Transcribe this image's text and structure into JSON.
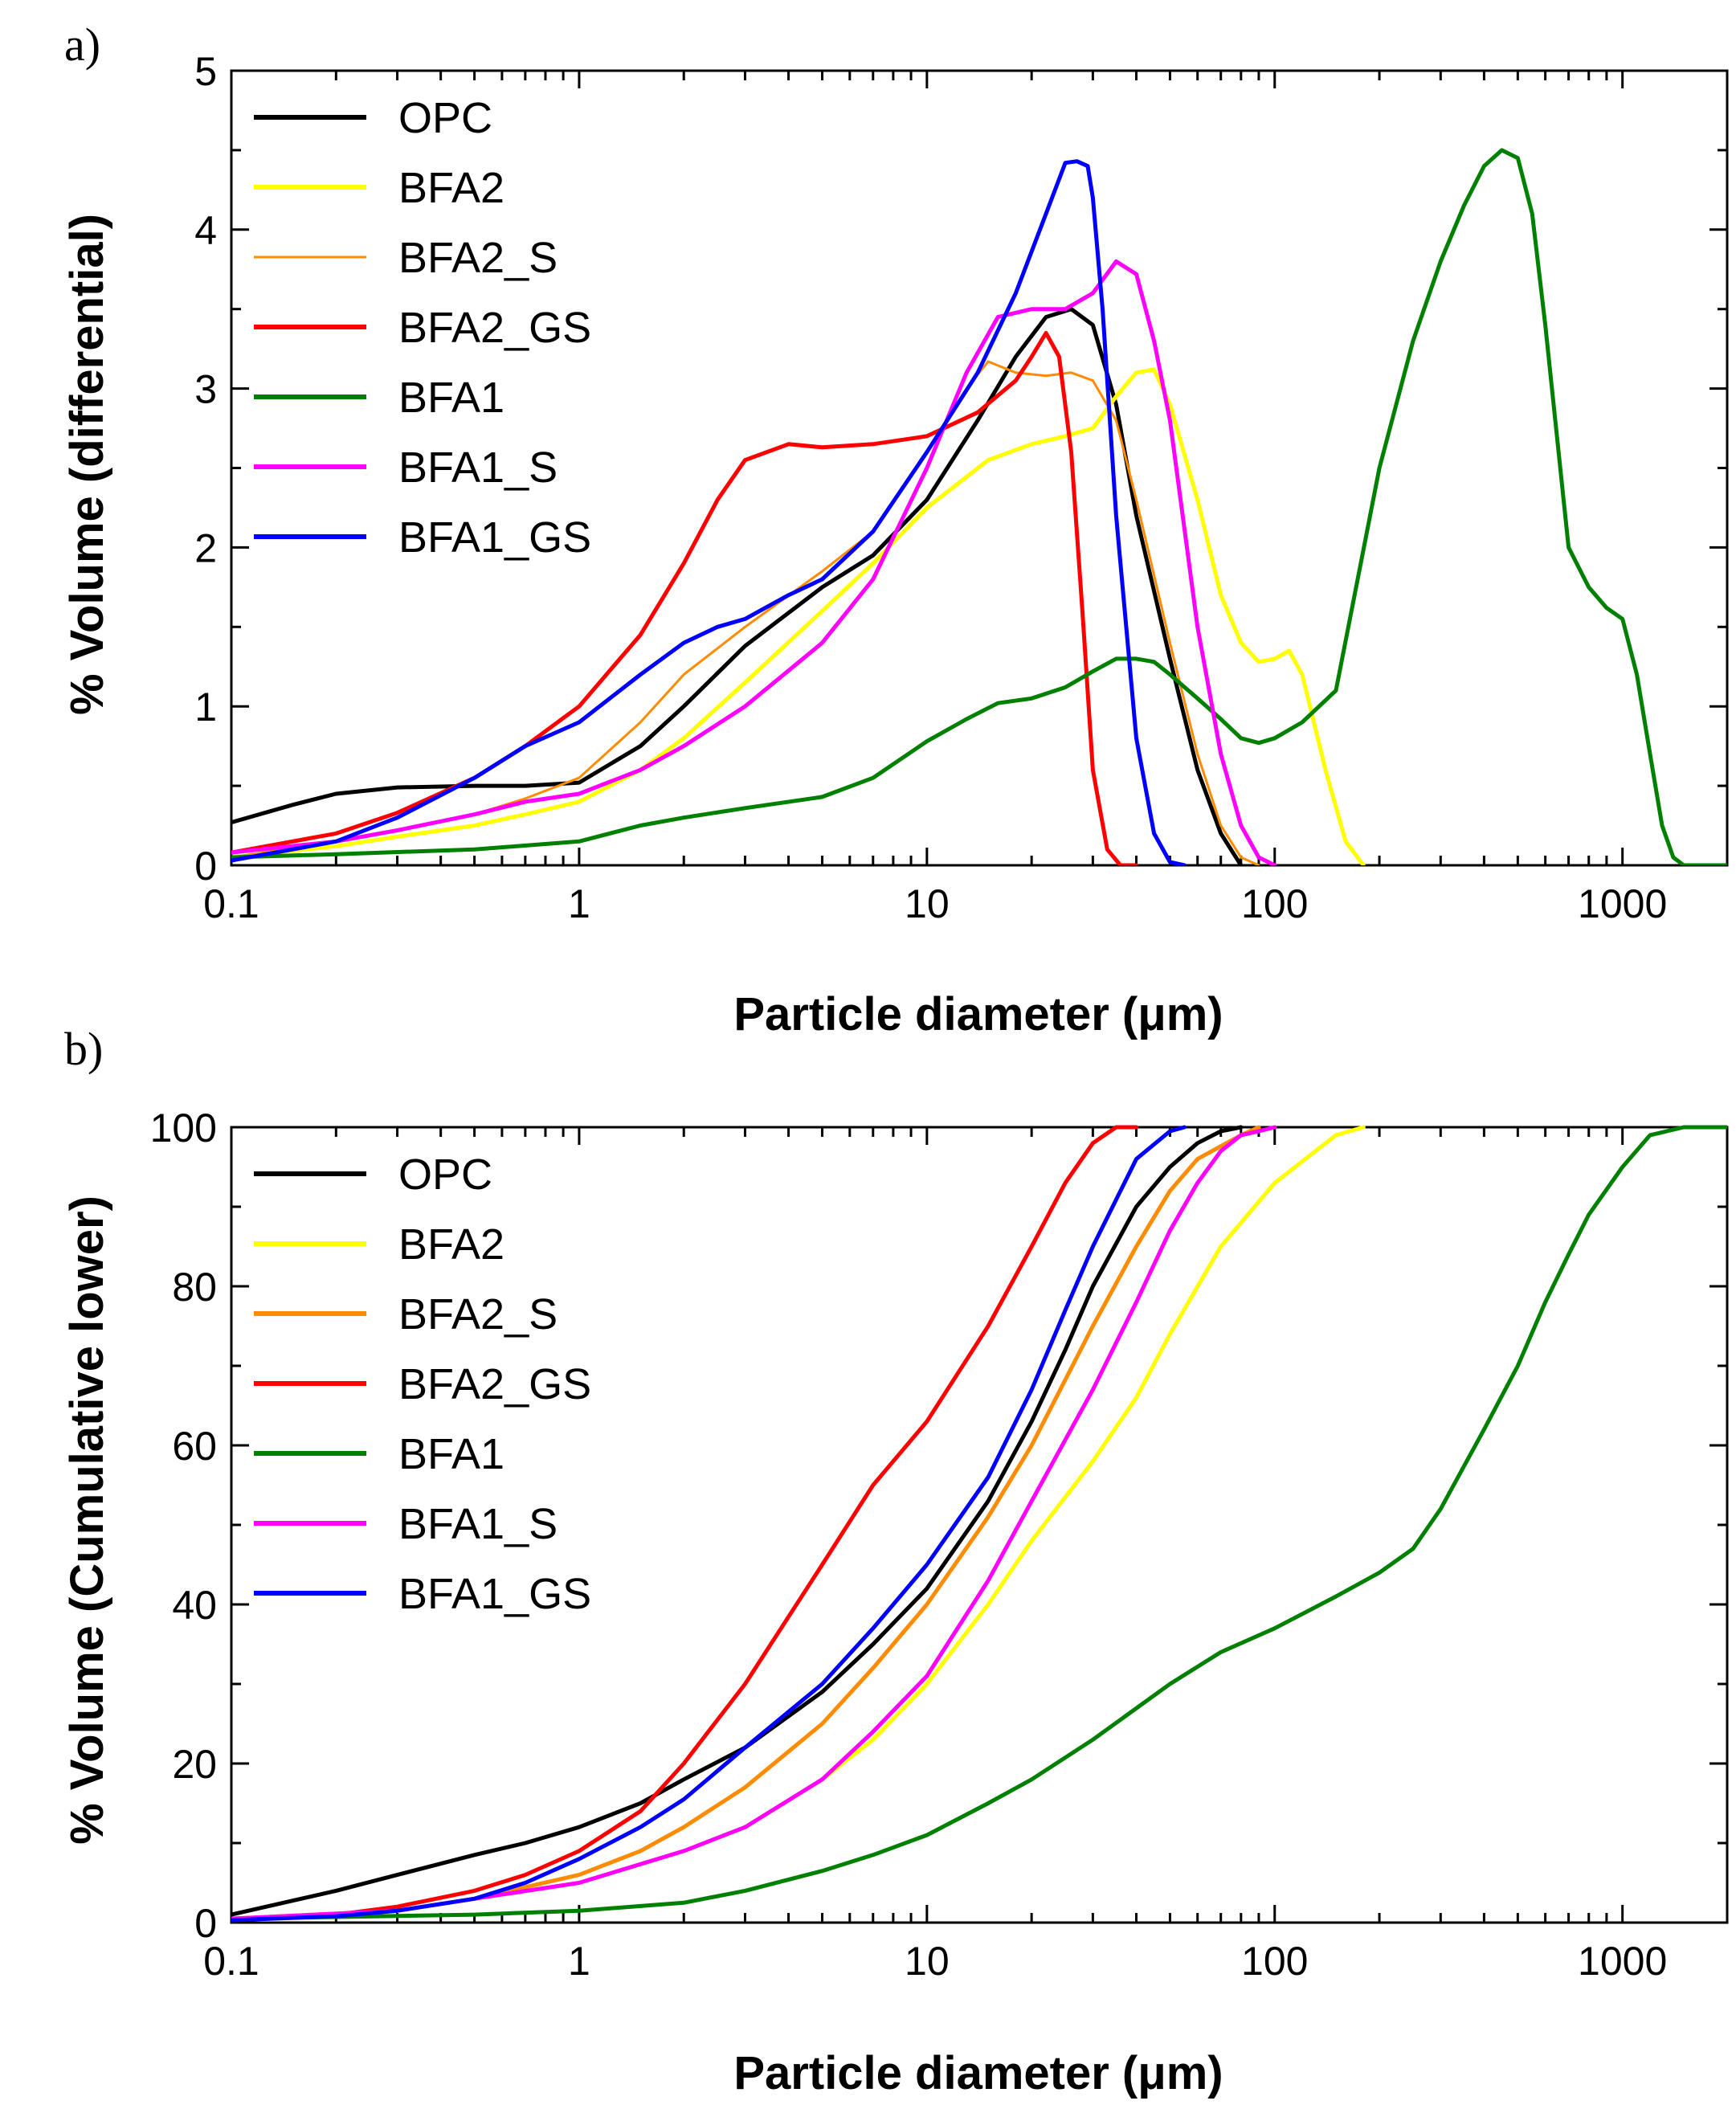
{
  "chart_data": [
    {
      "type": "line",
      "panel_label": "a)",
      "title": "",
      "xlabel": "Particle diameter (μm)",
      "ylabel": "% Volume (differential)",
      "xscale": "log",
      "xlim": [
        0.1,
        2000
      ],
      "ylim": [
        0,
        5
      ],
      "xticks": [
        0.1,
        1,
        10,
        100,
        1000
      ],
      "xtick_labels": [
        "0.1",
        "1",
        "10",
        "100",
        "1000"
      ],
      "yticks": [
        0,
        1,
        2,
        3,
        4,
        5
      ],
      "ytick_labels": [
        "0",
        "1",
        "2",
        "3",
        "4",
        "5"
      ],
      "legend_position": "top-left",
      "series": [
        {
          "name": "OPC",
          "color": "#000000",
          "x": [
            0.1,
            0.15,
            0.2,
            0.3,
            0.5,
            0.7,
            1,
            1.5,
            2,
            3,
            5,
            7,
            10,
            14,
            18,
            22,
            26,
            30,
            35,
            40,
            50,
            60,
            70,
            80
          ],
          "y": [
            0.27,
            0.38,
            0.45,
            0.49,
            0.5,
            0.5,
            0.52,
            0.75,
            1.0,
            1.38,
            1.75,
            1.95,
            2.3,
            2.8,
            3.2,
            3.45,
            3.5,
            3.4,
            2.9,
            2.2,
            1.3,
            0.6,
            0.2,
            0.0
          ]
        },
        {
          "name": "BFA2",
          "color": "#ffff00",
          "x": [
            0.1,
            0.2,
            0.3,
            0.5,
            0.7,
            1,
            1.5,
            2,
            3,
            5,
            7,
            10,
            15,
            20,
            25,
            30,
            35,
            40,
            45,
            50,
            60,
            70,
            80,
            90,
            100,
            110,
            120,
            140,
            160,
            180
          ],
          "y": [
            0.05,
            0.12,
            0.18,
            0.25,
            0.32,
            0.4,
            0.6,
            0.8,
            1.15,
            1.6,
            1.9,
            2.25,
            2.55,
            2.65,
            2.7,
            2.75,
            2.95,
            3.1,
            3.12,
            2.9,
            2.3,
            1.7,
            1.4,
            1.28,
            1.3,
            1.35,
            1.2,
            0.6,
            0.15,
            0.0
          ]
        },
        {
          "name": "BFA2_S",
          "color": "#ff8c00",
          "thin": true,
          "x": [
            0.1,
            0.2,
            0.3,
            0.5,
            0.7,
            1,
            1.5,
            2,
            3,
            5,
            7,
            10,
            13,
            15,
            18,
            22,
            26,
            30,
            35,
            40,
            50,
            60,
            70,
            80,
            90
          ],
          "y": [
            0.05,
            0.15,
            0.22,
            0.32,
            0.42,
            0.55,
            0.9,
            1.2,
            1.5,
            1.85,
            2.1,
            2.6,
            3.0,
            3.17,
            3.1,
            3.08,
            3.1,
            3.05,
            2.8,
            2.3,
            1.4,
            0.7,
            0.25,
            0.05,
            0.0
          ]
        },
        {
          "name": "BFA2_GS",
          "color": "#ff0000",
          "x": [
            0.1,
            0.2,
            0.3,
            0.5,
            0.7,
            1,
            1.5,
            2,
            2.5,
            3,
            4,
            5,
            7,
            10,
            14,
            18,
            20,
            22,
            24,
            26,
            28,
            30,
            33,
            36,
            40
          ],
          "y": [
            0.08,
            0.2,
            0.33,
            0.55,
            0.75,
            1.0,
            1.45,
            1.9,
            2.3,
            2.55,
            2.65,
            2.63,
            2.65,
            2.7,
            2.85,
            3.05,
            3.2,
            3.35,
            3.2,
            2.6,
            1.6,
            0.6,
            0.1,
            0.0,
            0.0
          ]
        },
        {
          "name": "BFA1",
          "color": "#008000",
          "x": [
            0.1,
            0.2,
            0.5,
            1,
            1.5,
            2,
            3,
            5,
            7,
            10,
            13,
            16,
            20,
            25,
            30,
            35,
            40,
            45,
            50,
            60,
            70,
            80,
            90,
            100,
            120,
            150,
            200,
            250,
            300,
            350,
            400,
            450,
            500,
            550,
            600,
            700,
            800,
            900,
            1000,
            1100,
            1200,
            1300,
            1400,
            1500,
            2000
          ],
          "y": [
            0.05,
            0.07,
            0.1,
            0.15,
            0.25,
            0.3,
            0.36,
            0.43,
            0.55,
            0.78,
            0.92,
            1.02,
            1.05,
            1.12,
            1.22,
            1.3,
            1.3,
            1.28,
            1.2,
            1.05,
            0.92,
            0.8,
            0.77,
            0.8,
            0.9,
            1.1,
            2.5,
            3.3,
            3.8,
            4.15,
            4.4,
            4.5,
            4.45,
            4.1,
            3.4,
            2.0,
            1.75,
            1.62,
            1.55,
            1.2,
            0.7,
            0.25,
            0.05,
            0.0,
            0.0
          ]
        },
        {
          "name": "BFA1_S",
          "color": "#ff00ff",
          "x": [
            0.1,
            0.2,
            0.3,
            0.5,
            0.7,
            1,
            1.5,
            2,
            3,
            5,
            7,
            10,
            13,
            16,
            20,
            25,
            30,
            35,
            40,
            45,
            50,
            60,
            70,
            80,
            90,
            100
          ],
          "y": [
            0.08,
            0.15,
            0.22,
            0.32,
            0.4,
            0.45,
            0.6,
            0.75,
            1.0,
            1.4,
            1.8,
            2.5,
            3.1,
            3.45,
            3.5,
            3.5,
            3.6,
            3.8,
            3.72,
            3.3,
            2.8,
            1.5,
            0.7,
            0.25,
            0.05,
            0.0
          ]
        },
        {
          "name": "BFA1_GS",
          "color": "#0000ff",
          "x": [
            0.1,
            0.2,
            0.3,
            0.5,
            0.7,
            1,
            1.5,
            2,
            2.5,
            3,
            4,
            5,
            7,
            10,
            14,
            18,
            22,
            25,
            27,
            29,
            30,
            32,
            35,
            40,
            45,
            50,
            55
          ],
          "y": [
            0.03,
            0.15,
            0.3,
            0.55,
            0.75,
            0.9,
            1.2,
            1.4,
            1.5,
            1.55,
            1.7,
            1.8,
            2.1,
            2.6,
            3.1,
            3.6,
            4.1,
            4.42,
            4.43,
            4.4,
            4.2,
            3.5,
            2.2,
            0.8,
            0.2,
            0.02,
            0.0
          ]
        }
      ],
      "legend": [
        "OPC",
        "BFA2",
        "BFA2_S",
        "BFA2_GS",
        "BFA1",
        "BFA1_S",
        "BFA1_GS"
      ]
    },
    {
      "type": "line",
      "panel_label": "b)",
      "title": "",
      "xlabel": "Particle diameter (μm)",
      "ylabel": "% Volume (Cumulative lower)",
      "xscale": "log",
      "xlim": [
        0.1,
        2000
      ],
      "ylim": [
        0,
        100
      ],
      "xticks": [
        0.1,
        1,
        10,
        100,
        1000
      ],
      "xtick_labels": [
        "0.1",
        "1",
        "10",
        "100",
        "1000"
      ],
      "yticks": [
        0,
        20,
        40,
        60,
        80,
        100
      ],
      "ytick_labels": [
        "0",
        "20",
        "40",
        "60",
        "80",
        "100"
      ],
      "legend_position": "top-left",
      "series": [
        {
          "name": "OPC",
          "color": "#000000",
          "x": [
            0.1,
            0.2,
            0.3,
            0.5,
            0.7,
            1,
            1.5,
            2,
            3,
            5,
            7,
            10,
            15,
            20,
            25,
            30,
            40,
            50,
            60,
            70,
            80
          ],
          "y": [
            1,
            4,
            6,
            8.5,
            10,
            12,
            15,
            18,
            22,
            29,
            35,
            42,
            53,
            63,
            72,
            80,
            90,
            95,
            98,
            99.5,
            100
          ]
        },
        {
          "name": "BFA2",
          "color": "#ffff00",
          "x": [
            0.1,
            0.3,
            0.5,
            1,
            2,
            3,
            5,
            7,
            10,
            15,
            20,
            30,
            40,
            50,
            70,
            100,
            150,
            180
          ],
          "y": [
            0.5,
            1.5,
            3,
            5,
            9,
            12,
            18,
            23,
            30,
            40,
            48,
            58,
            66,
            74,
            85,
            93,
            99,
            100
          ]
        },
        {
          "name": "BFA2_S",
          "color": "#ff8c00",
          "x": [
            0.1,
            0.3,
            0.5,
            1,
            1.5,
            2,
            3,
            5,
            7,
            10,
            15,
            20,
            30,
            40,
            50,
            60,
            80,
            90
          ],
          "y": [
            0.5,
            1.5,
            3,
            6,
            9,
            12,
            17,
            25,
            32,
            40,
            51,
            60,
            75,
            85,
            92,
            96,
            99,
            100
          ]
        },
        {
          "name": "BFA2_GS",
          "color": "#ff0000",
          "thin": false,
          "x": [
            0.1,
            0.2,
            0.3,
            0.5,
            0.7,
            1,
            1.5,
            2,
            3,
            5,
            7,
            10,
            15,
            20,
            25,
            30,
            35,
            40
          ],
          "y": [
            0.5,
            1,
            2,
            4,
            6,
            9,
            14,
            20,
            30,
            45,
            55,
            63,
            75,
            85,
            93,
            98,
            100,
            100
          ]
        },
        {
          "name": "BFA1",
          "color": "#008000",
          "x": [
            0.1,
            0.5,
            1,
            2,
            3,
            5,
            7,
            10,
            15,
            20,
            30,
            50,
            70,
            100,
            150,
            200,
            250,
            300,
            400,
            500,
            600,
            700,
            800,
            1000,
            1200,
            1500,
            2000
          ],
          "y": [
            0.5,
            1,
            1.5,
            2.5,
            4,
            6.5,
            8.5,
            11,
            15,
            18,
            23,
            30,
            34,
            37,
            41,
            44,
            47,
            52,
            62,
            70,
            78,
            84,
            89,
            95,
            99,
            100,
            100
          ]
        },
        {
          "name": "BFA1_S",
          "color": "#ff00ff",
          "x": [
            0.1,
            0.3,
            0.5,
            1,
            2,
            3,
            5,
            7,
            10,
            15,
            20,
            30,
            40,
            50,
            60,
            70,
            80,
            90,
            100
          ],
          "y": [
            0.5,
            1.5,
            3,
            5,
            9,
            12,
            18,
            24,
            31,
            43,
            53,
            67,
            78,
            87,
            93,
            97,
            99,
            99.5,
            100
          ]
        },
        {
          "name": "BFA1_GS",
          "color": "#0000ff",
          "x": [
            0.1,
            0.2,
            0.3,
            0.5,
            0.7,
            1,
            1.5,
            2,
            3,
            5,
            7,
            10,
            15,
            20,
            25,
            30,
            40,
            50,
            55
          ],
          "y": [
            0.3,
            0.8,
            1.5,
            3,
            5,
            8,
            12,
            15.5,
            22,
            30,
            37,
            45,
            56,
            67,
            77,
            85,
            96,
            99.5,
            100
          ]
        }
      ],
      "legend": [
        "OPC",
        "BFA2",
        "BFA2_S",
        "BFA2_GS",
        "BFA1",
        "BFA1_S",
        "BFA1_GS"
      ]
    }
  ]
}
